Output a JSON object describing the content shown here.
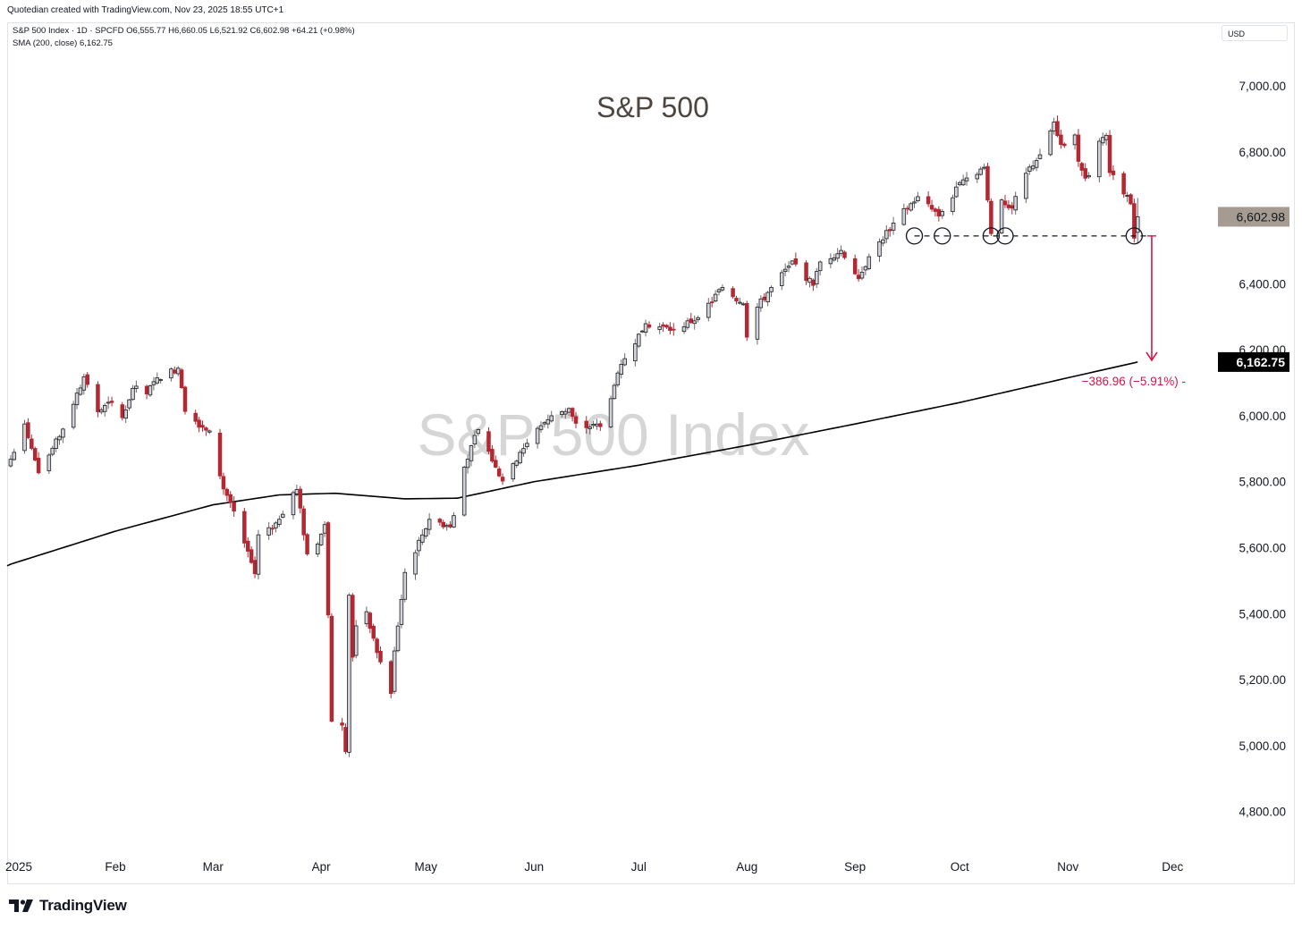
{
  "header": {
    "credit": "Quotedian created with TradingView.com, Nov 23, 2025 18:55 UTC+1",
    "legend_symbol": "S&P 500 Index · 1D · SPCFD",
    "legend_ohlc": "O6,555.77 H6,660.05 L6,521.92 C6,602.98 +64.21 (+0.98%)",
    "legend_sma": "SMA (200, close)  6,162.75",
    "currency": "USD"
  },
  "footer": {
    "brand": "TradingView"
  },
  "colors": {
    "up": "#d1d4dc",
    "down": "#b22833",
    "sma": "#000000",
    "annotation": "#d3164b",
    "price_label_bg": "#a59b91",
    "sma_label_bg": "#000000"
  },
  "chart_data": {
    "type": "candlestick",
    "title": "S&P 500",
    "watermark": "S&P 500 Index",
    "ylim": [
      4680,
      7130
    ],
    "yticks": [
      4800,
      5000,
      5200,
      5400,
      5600,
      5800,
      6000,
      6200,
      6400,
      6600,
      6800,
      7000
    ],
    "ytick_labels": [
      "4,800.00",
      "5,000.00",
      "5,200.00",
      "5,400.00",
      "5,600.00",
      "5,800.00",
      "6,000.00",
      "6,200.00",
      "6,400.00",
      "6,600.00",
      "6,800.00",
      "7,000.00"
    ],
    "x_start": "2025-01-01",
    "x_end": "2025-12-14",
    "month_ticks": [
      {
        "label": "2025",
        "date": "2025-01-01"
      },
      {
        "label": "Feb",
        "date": "2025-02-01"
      },
      {
        "label": "Mar",
        "date": "2025-03-01"
      },
      {
        "label": "Apr",
        "date": "2025-04-01"
      },
      {
        "label": "May",
        "date": "2025-05-01"
      },
      {
        "label": "Jun",
        "date": "2025-06-01"
      },
      {
        "label": "Jul",
        "date": "2025-07-01"
      },
      {
        "label": "Aug",
        "date": "2025-08-01"
      },
      {
        "label": "Sep",
        "date": "2025-09-01"
      },
      {
        "label": "Oct",
        "date": "2025-10-01"
      },
      {
        "label": "Nov",
        "date": "2025-11-01"
      },
      {
        "label": "Dec",
        "date": "2025-12-01"
      }
    ],
    "close_anchors": [
      [
        "2025-01-02",
        5868
      ],
      [
        "2025-01-06",
        5975
      ],
      [
        "2025-01-10",
        5827
      ],
      [
        "2025-01-16",
        5937
      ],
      [
        "2025-01-23",
        6118
      ],
      [
        "2025-01-27",
        6012
      ],
      [
        "2025-01-31",
        6040
      ],
      [
        "2025-02-03",
        5994
      ],
      [
        "2025-02-06",
        6083
      ],
      [
        "2025-02-10",
        6066
      ],
      [
        "2025-02-13",
        6115
      ],
      [
        "2025-02-19",
        6144
      ],
      [
        "2025-02-21",
        6013
      ],
      [
        "2025-02-24",
        5983
      ],
      [
        "2025-02-28",
        5954
      ],
      [
        "2025-03-04",
        5778
      ],
      [
        "2025-03-06",
        5738
      ],
      [
        "2025-03-10",
        5614
      ],
      [
        "2025-03-13",
        5521
      ],
      [
        "2025-03-14",
        5639
      ],
      [
        "2025-03-19",
        5675
      ],
      [
        "2025-03-24",
        5767
      ],
      [
        "2025-03-25",
        5776
      ],
      [
        "2025-03-28",
        5581
      ],
      [
        "2025-03-31",
        5611
      ],
      [
        "2025-04-02",
        5670
      ],
      [
        "2025-04-03",
        5396
      ],
      [
        "2025-04-04",
        5074
      ],
      [
        "2025-04-07",
        5062
      ],
      [
        "2025-04-08",
        4982
      ],
      [
        "2025-04-09",
        5456
      ],
      [
        "2025-04-10",
        5268
      ],
      [
        "2025-04-11",
        5363
      ],
      [
        "2025-04-14",
        5406
      ],
      [
        "2025-04-17",
        5282
      ],
      [
        "2025-04-21",
        5158
      ],
      [
        "2025-04-22",
        5287
      ],
      [
        "2025-04-25",
        5525
      ],
      [
        "2025-05-02",
        5686
      ],
      [
        "2025-05-08",
        5663
      ],
      [
        "2025-05-12",
        5844
      ],
      [
        "2025-05-16",
        5958
      ],
      [
        "2025-05-21",
        5844
      ],
      [
        "2025-05-23",
        5802
      ],
      [
        "2025-05-28",
        5889
      ],
      [
        "2025-06-03",
        5970
      ],
      [
        "2025-06-06",
        6000
      ],
      [
        "2025-06-11",
        6022
      ],
      [
        "2025-06-13",
        5977
      ],
      [
        "2025-06-20",
        5967
      ],
      [
        "2025-06-24",
        6092
      ],
      [
        "2025-06-27",
        6173
      ],
      [
        "2025-07-03",
        6279
      ],
      [
        "2025-07-11",
        6260
      ],
      [
        "2025-07-18",
        6297
      ],
      [
        "2025-07-25",
        6389
      ],
      [
        "2025-07-31",
        6339
      ],
      [
        "2025-08-01",
        6238
      ],
      [
        "2025-08-04",
        6329
      ],
      [
        "2025-08-08",
        6389
      ],
      [
        "2025-08-14",
        6469
      ],
      [
        "2025-08-20",
        6395
      ],
      [
        "2025-08-22",
        6466
      ],
      [
        "2025-08-28",
        6501
      ],
      [
        "2025-09-02",
        6415
      ],
      [
        "2025-09-05",
        6482
      ],
      [
        "2025-09-12",
        6584
      ],
      [
        "2025-09-19",
        6664
      ],
      [
        "2025-09-25",
        6605
      ],
      [
        "2025-10-02",
        6715
      ],
      [
        "2025-10-08",
        6753
      ],
      [
        "2025-10-10",
        6552
      ],
      [
        "2025-10-13",
        6654
      ],
      [
        "2025-10-16",
        6629
      ],
      [
        "2025-10-20",
        6735
      ],
      [
        "2025-10-24",
        6791
      ],
      [
        "2025-10-28",
        6890
      ],
      [
        "2025-10-30",
        6822
      ],
      [
        "2025-11-03",
        6851
      ],
      [
        "2025-11-04",
        6771
      ],
      [
        "2025-11-06",
        6720
      ],
      [
        "2025-11-07",
        6728
      ],
      [
        "2025-11-10",
        6832
      ],
      [
        "2025-11-12",
        6850
      ],
      [
        "2025-11-13",
        6737
      ],
      [
        "2025-11-17",
        6672
      ],
      [
        "2025-11-19",
        6642
      ],
      [
        "2025-11-20",
        6538
      ],
      [
        "2025-11-21",
        6602.98
      ]
    ],
    "last_candle": {
      "date": "2025-11-21",
      "open": 6555.77,
      "high": 6660.05,
      "low": 6521.92,
      "close": 6602.98
    },
    "sma_200": [
      [
        "2025-01-02",
        5550
      ],
      [
        "2025-02-01",
        5650
      ],
      [
        "2025-03-01",
        5730
      ],
      [
        "2025-03-20",
        5760
      ],
      [
        "2025-04-05",
        5765
      ],
      [
        "2025-04-25",
        5748
      ],
      [
        "2025-05-10",
        5750
      ],
      [
        "2025-06-01",
        5800
      ],
      [
        "2025-07-01",
        5850
      ],
      [
        "2025-08-01",
        5910
      ],
      [
        "2025-09-01",
        5975
      ],
      [
        "2025-10-01",
        6040
      ],
      [
        "2025-11-01",
        6115
      ],
      [
        "2025-11-21",
        6162.75
      ]
    ],
    "support_level": 6545,
    "support_touches": [
      "2025-09-18",
      "2025-09-26",
      "2025-10-10",
      "2025-10-14",
      "2025-11-20"
    ],
    "price_label": "6,602.98",
    "sma_label": "6,162.75",
    "projection_label": "−386.96 (−5.91%) -"
  }
}
